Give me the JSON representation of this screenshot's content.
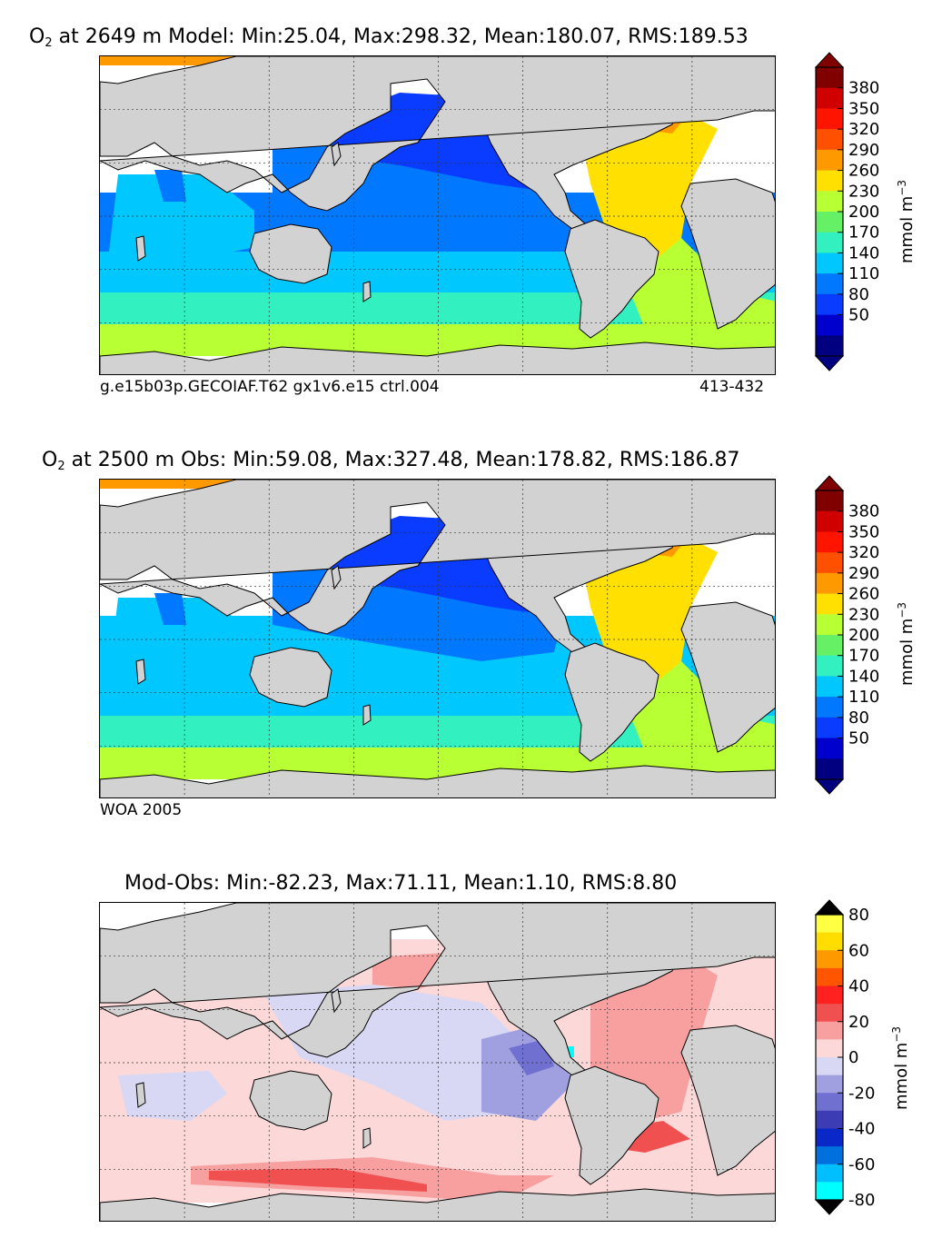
{
  "panels": [
    {
      "title_prefix": "O",
      "title_sub": "2",
      "title_rest": " at 2649 m Model: Min:25.04, Max:298.32, Mean:180.07, RMS:189.53",
      "footer_left": "g.e15b03p.GECOIAF.T62 gx1v6.e15 ctrl.004",
      "footer_right": "413-432",
      "colorbar": {
        "ticks": [
          "380",
          "350",
          "320",
          "290",
          "260",
          "230",
          "200",
          "170",
          "140",
          "110",
          "80",
          "50"
        ],
        "unit_label": "mmol m",
        "unit_exp": "−3",
        "colors": [
          "#000080",
          "#0000cd",
          "#0a3cff",
          "#0078ff",
          "#00c8ff",
          "#33f0c0",
          "#66f066",
          "#b8ff33",
          "#ffe000",
          "#ff9900",
          "#ff5000",
          "#ff1400",
          "#d00000",
          "#800000"
        ]
      }
    },
    {
      "title_prefix": "O",
      "title_sub": "2",
      "title_rest": " at 2500 m Obs: Min:59.08, Max:327.48, Mean:178.82, RMS:186.87",
      "footer_left": "WOA 2005",
      "footer_right": "",
      "colorbar": {
        "ticks": [
          "380",
          "350",
          "320",
          "290",
          "260",
          "230",
          "200",
          "170",
          "140",
          "110",
          "80",
          "50"
        ],
        "unit_label": "mmol m",
        "unit_exp": "−3",
        "colors": [
          "#000080",
          "#0000cd",
          "#0a3cff",
          "#0078ff",
          "#00c8ff",
          "#33f0c0",
          "#66f066",
          "#b8ff33",
          "#ffe000",
          "#ff9900",
          "#ff5000",
          "#ff1400",
          "#d00000",
          "#800000"
        ]
      }
    },
    {
      "title_prefix": "",
      "title_sub": "",
      "title_rest": "Mod-Obs: Min:-82.23, Max:71.11, Mean:1.10, RMS:8.80",
      "footer_left": "",
      "footer_right": "",
      "colorbar": {
        "ticks": [
          "80",
          "60",
          "40",
          "20",
          "0",
          "-20",
          "-40",
          "-60",
          "-80"
        ],
        "unit_label": "mmol m",
        "unit_exp": "−3",
        "colors": [
          "#00ffff",
          "#00bfff",
          "#0070dd",
          "#0a28c8",
          "#3c3cb4",
          "#7070d0",
          "#a0a0e0",
          "#d8d8f4",
          "#fcd8d8",
          "#f8a0a0",
          "#f05050",
          "#ff2020",
          "#ff5500",
          "#ff9900",
          "#ffdd00",
          "#ffff44"
        ]
      }
    }
  ]
}
